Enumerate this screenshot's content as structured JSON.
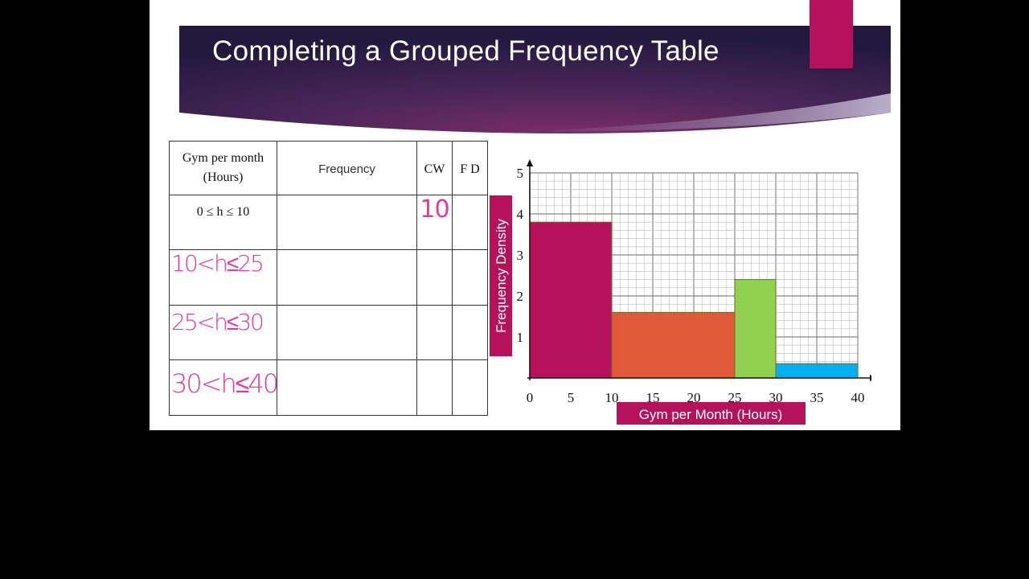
{
  "slide": {
    "title": "Completing a Grouped Frequency Table",
    "colors": {
      "banner_dark": "#2b1f4a",
      "banner_mid": "#6b2b63",
      "accent": "#b5125b"
    }
  },
  "table": {
    "headers": [
      "Gym per month",
      "(Hours)",
      "Frequency",
      "CW",
      "F D"
    ],
    "rows": [
      {
        "interval": "0 ≤ h ≤ 10",
        "frequency": "",
        "cw": "10",
        "fd": ""
      },
      {
        "interval": "10<h≤25",
        "frequency": "",
        "cw": "",
        "fd": ""
      },
      {
        "interval": "25<h≤30",
        "frequency": "",
        "cw": "",
        "fd": ""
      },
      {
        "interval": "30<h≤40",
        "frequency": "",
        "cw": "",
        "fd": ""
      }
    ]
  },
  "chart_data": {
    "type": "bar",
    "xlabel": "Gym per Month (Hours)",
    "ylabel": "Frequency Density",
    "xlim": [
      0,
      40
    ],
    "ylim": [
      0,
      5
    ],
    "xticks": [
      "0",
      "5",
      "10",
      "15",
      "20",
      "25",
      "30",
      "35",
      "40"
    ],
    "yticks": [
      "1",
      "2",
      "3",
      "4",
      "5"
    ],
    "grid": true,
    "bars": [
      {
        "x0": 0,
        "x1": 10,
        "value": 3.8,
        "color": "#b5125b"
      },
      {
        "x0": 10,
        "x1": 25,
        "value": 1.6,
        "color": "#e05a3a"
      },
      {
        "x0": 25,
        "x1": 30,
        "value": 2.4,
        "color": "#92d050"
      },
      {
        "x0": 30,
        "x1": 40,
        "value": 0.35,
        "color": "#00b0f0"
      }
    ]
  }
}
